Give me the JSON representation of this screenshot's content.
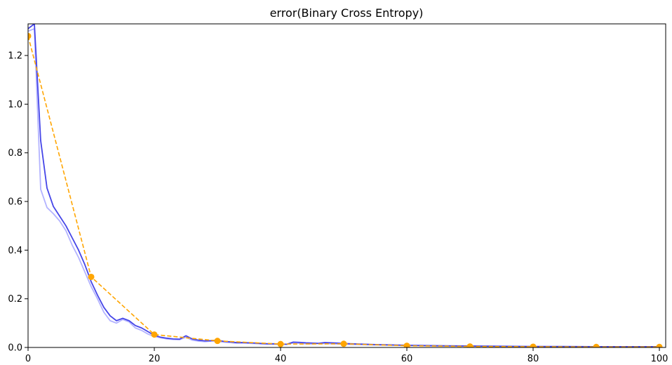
{
  "chart_data": {
    "type": "line",
    "title": "error(Binary Cross Entropy)",
    "xlabel": "",
    "ylabel": "",
    "xlim": [
      0,
      101
    ],
    "ylim": [
      0,
      1.33
    ],
    "x_ticks": [
      0,
      20,
      40,
      60,
      80,
      100
    ],
    "y_ticks": [
      0.0,
      0.2,
      0.4,
      0.6,
      0.8,
      1.0,
      1.2
    ],
    "x_tick_labels": [
      "0",
      "20",
      "40",
      "60",
      "80",
      "100"
    ],
    "y_tick_labels": [
      "0.0",
      "0.2",
      "0.4",
      "0.6",
      "0.8",
      "1.0",
      "1.2"
    ],
    "grid": false,
    "series": [
      {
        "style": "solid",
        "color": "#b3b3ff",
        "x": [
          0,
          1,
          2,
          3,
          4,
          5,
          6,
          7,
          8,
          9,
          10,
          11,
          12,
          13,
          14,
          15,
          16,
          17,
          18,
          19,
          20,
          21,
          22,
          23,
          24,
          25,
          26,
          27,
          28,
          29,
          30,
          31,
          32,
          33,
          34,
          35,
          36,
          37,
          38,
          39,
          40,
          41,
          42,
          43,
          44,
          45,
          46,
          47,
          48,
          49,
          50,
          55,
          60,
          65,
          70,
          75,
          80,
          85,
          90,
          95,
          100
        ],
        "y": [
          1.3,
          1.31,
          0.65,
          0.575,
          0.55,
          0.52,
          0.48,
          0.42,
          0.37,
          0.31,
          0.25,
          0.2,
          0.145,
          0.11,
          0.1,
          0.115,
          0.105,
          0.08,
          0.07,
          0.055,
          0.045,
          0.04,
          0.035,
          0.033,
          0.032,
          0.042,
          0.03,
          0.026,
          0.024,
          0.026,
          0.025,
          0.022,
          0.02,
          0.018,
          0.018,
          0.017,
          0.016,
          0.015,
          0.014,
          0.013,
          0.013,
          0.013,
          0.018,
          0.017,
          0.015,
          0.014,
          0.016,
          0.016,
          0.015,
          0.014,
          0.013,
          0.01,
          0.008,
          0.006,
          0.005,
          0.004,
          0.004,
          0.003,
          0.003,
          0.003,
          0.003
        ]
      },
      {
        "style": "solid",
        "color": "#4545e8",
        "x": [
          0,
          1,
          2,
          3,
          4,
          5,
          6,
          7,
          8,
          9,
          10,
          11,
          12,
          13,
          14,
          15,
          16,
          17,
          18,
          19,
          20,
          21,
          22,
          23,
          24,
          25,
          26,
          27,
          28,
          29,
          30,
          31,
          32,
          33,
          34,
          35,
          36,
          37,
          38,
          39,
          40,
          41,
          42,
          43,
          44,
          45,
          46,
          47,
          48,
          49,
          50,
          55,
          60,
          65,
          70,
          75,
          80,
          85,
          90,
          95,
          100
        ],
        "y": [
          1.31,
          1.33,
          0.85,
          0.655,
          0.58,
          0.54,
          0.5,
          0.45,
          0.4,
          0.34,
          0.27,
          0.215,
          0.165,
          0.13,
          0.11,
          0.12,
          0.11,
          0.09,
          0.08,
          0.065,
          0.05,
          0.042,
          0.038,
          0.035,
          0.034,
          0.048,
          0.035,
          0.03,
          0.027,
          0.028,
          0.03,
          0.025,
          0.023,
          0.02,
          0.02,
          0.019,
          0.018,
          0.016,
          0.015,
          0.015,
          0.014,
          0.013,
          0.022,
          0.021,
          0.019,
          0.018,
          0.017,
          0.02,
          0.019,
          0.018,
          0.016,
          0.012,
          0.009,
          0.007,
          0.006,
          0.005,
          0.004,
          0.004,
          0.003,
          0.003,
          0.003
        ]
      },
      {
        "style": "dashed",
        "color": "#ffa500",
        "markers": true,
        "x": [
          0,
          10,
          20,
          30,
          40,
          50,
          60,
          70,
          80,
          90,
          100
        ],
        "y": [
          1.28,
          0.29,
          0.053,
          0.027,
          0.014,
          0.015,
          0.007,
          0.004,
          0.003,
          0.002,
          0.002
        ]
      }
    ]
  }
}
